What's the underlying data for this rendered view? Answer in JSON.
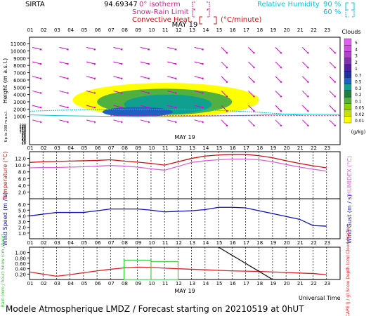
{
  "header": {
    "site": "SIRTA",
    "number": "94.69347",
    "date": "MAY 19",
    "legend_left": [
      {
        "label": "0° isotherm",
        "color": "#e0208c"
      },
      {
        "label": "Snow-Rain Limit",
        "color": "#e0208c"
      },
      {
        "label": "Convective Heat.",
        "color": "#d01010"
      }
    ],
    "convective_unit": "(°C/minute)",
    "humidity_label": "Relative Humidity",
    "humidity_levels": [
      "90 %",
      "60 %"
    ],
    "humidity_color": "#00c8d8"
  },
  "footer": {
    "universal_time": "Universal Time",
    "model_line": "Modele Atmospherique LMDZ / Forecast starting on 20210519 at 0hUT"
  },
  "colors": {
    "temperature": "#d01010",
    "humidex": "#e060e0",
    "wind": "#1010c0",
    "rain": "#20d020",
    "snow": "#1060c0",
    "cape": "#e02020",
    "cloud_fraction": "#101010",
    "wind_arrow": "#e000e0"
  },
  "chart_data": [
    {
      "type": "heatmap",
      "panel": "clouds",
      "date": "MAY 19",
      "x_hours": [
        "01",
        "02",
        "03",
        "04",
        "05",
        "06",
        "07",
        "08",
        "09",
        "10",
        "11",
        "12",
        "13",
        "14",
        "15",
        "16",
        "17",
        "18",
        "19",
        "20",
        "21",
        "22",
        "23"
      ],
      "ylabel": "Height (m a.s.l.)",
      "ylabel_low": "Up to 200 m a.s.l.",
      "yticks_upper": [
        "1000",
        "2000",
        "3000",
        "4000",
        "5000",
        "6000",
        "7000",
        "8000",
        "9000",
        "10000",
        "11000"
      ],
      "yticks_lower": [
        "10",
        "20",
        "30",
        "40",
        "50",
        "60",
        "70",
        "80",
        "90",
        "100",
        "120",
        "140",
        "160",
        "180",
        "200"
      ],
      "legend_title": "Clouds",
      "legend_unit": "(g/kg)",
      "legend_levels": [
        "0.01",
        "0.02",
        "0.05",
        "0.1",
        "0.2",
        "0.3",
        "0.5",
        "0.7",
        "1",
        "2",
        "3",
        "4",
        "5"
      ],
      "legend_colors": [
        "#ffff00",
        "#c8e000",
        "#90d000",
        "#50b040",
        "#208040",
        "#10a090",
        "#2060c0",
        "#2030a0",
        "#5020a0",
        "#8030b0",
        "#b040d0",
        "#d050e0",
        "#e060f0"
      ],
      "cloud_layers": [
        {
          "level": "0.01",
          "h_start": 3.2,
          "h_end": 17.0,
          "z_bottom": 900,
          "z_top": 5600
        },
        {
          "level": "0.1",
          "h_start": 5.0,
          "h_end": 15.0,
          "z_bottom": 1200,
          "z_top": 4800
        },
        {
          "level": "0.3",
          "h_start": 7.0,
          "h_end": 13.5,
          "z_bottom": 1300,
          "z_top": 4000
        }
      ],
      "arrows": "wind direction arrows at each hour and height"
    },
    {
      "type": "line",
      "panel": "temperature",
      "x": [
        "01",
        "02",
        "03",
        "04",
        "05",
        "06",
        "07",
        "08",
        "09",
        "10",
        "11",
        "12",
        "13",
        "14",
        "15",
        "16",
        "17",
        "18",
        "19",
        "20",
        "21",
        "22",
        "23"
      ],
      "ylabel": "Temperature (°C)",
      "ylabel_right": "HUMIDEX (°C)",
      "yticks": [
        "2.0",
        "4.0",
        "6.0",
        "8.0",
        "10.0",
        "12.0"
      ],
      "ylim": [
        0,
        14
      ],
      "series": [
        {
          "name": "Temperature",
          "values": [
            10.8,
            11.0,
            11.1,
            11.2,
            11.3,
            11.4,
            11.6,
            11.2,
            10.9,
            10.5,
            10.0,
            11.0,
            12.0,
            12.7,
            13.0,
            13.2,
            13.2,
            12.8,
            12.2,
            11.3,
            10.5,
            9.8,
            9.2
          ]
        },
        {
          "name": "HUMIDEX",
          "values": [
            9.2,
            9.3,
            9.3,
            9.4,
            9.5,
            9.7,
            9.9,
            9.7,
            9.4,
            8.9,
            8.5,
            9.6,
            10.8,
            11.3,
            11.6,
            11.8,
            11.8,
            11.6,
            11.0,
            10.2,
            9.4,
            8.8,
            8.2
          ]
        }
      ]
    },
    {
      "type": "line",
      "panel": "wind",
      "x": [
        "01",
        "02",
        "03",
        "04",
        "05",
        "06",
        "07",
        "08",
        "09",
        "10",
        "11",
        "12",
        "13",
        "14",
        "15",
        "16",
        "17",
        "18",
        "19",
        "20",
        "21",
        "22",
        "23"
      ],
      "ylabel": "Wind Speed (m / s)",
      "ylabel_right": "Wind Gust (m / s)",
      "yticks": [
        "1.0",
        "2.0",
        "3.0",
        "4.0",
        "5.0",
        "6.0"
      ],
      "ylim": [
        0,
        7
      ],
      "series": [
        {
          "name": "Wind Speed",
          "values": [
            4.0,
            4.3,
            4.6,
            4.6,
            4.6,
            4.9,
            5.2,
            5.2,
            5.2,
            5.0,
            4.7,
            4.8,
            4.9,
            5.1,
            5.5,
            5.5,
            5.4,
            4.9,
            4.4,
            3.9,
            3.4,
            2.3,
            2.2
          ]
        }
      ]
    },
    {
      "type": "line",
      "panel": "precipitation",
      "x": [
        "01",
        "02",
        "03",
        "04",
        "05",
        "06",
        "07",
        "08",
        "09",
        "10",
        "11",
        "12",
        "13",
        "14",
        "15",
        "16",
        "17",
        "18",
        "19",
        "20",
        "21",
        "22",
        "23"
      ],
      "ylabel": "Rain (mm / hour) Snow (cm / hour)",
      "ylabel_right": "CAPE (J / g) Snow Depth (cm) Cloud Fraction",
      "yticks": [
        "0.20",
        "0.40",
        "0.60",
        "0.80",
        "1.00"
      ],
      "ylim": [
        0,
        1.2
      ],
      "series": [
        {
          "name": "CAPE",
          "values": [
            0.28,
            0.2,
            0.12,
            0.18,
            0.25,
            0.32,
            0.38,
            0.43,
            0.46,
            0.45,
            0.42,
            0.4,
            0.38,
            0.36,
            0.34,
            0.32,
            0.31,
            0.3,
            0.28,
            0.26,
            0.24,
            0.22,
            0.18
          ]
        },
        {
          "name": "Cloud Fraction",
          "values": [
            null,
            null,
            null,
            null,
            null,
            null,
            null,
            null,
            null,
            null,
            null,
            null,
            null,
            null,
            1.2,
            0.9,
            0.6,
            0.3,
            0.0,
            0.0,
            0.0,
            0.0,
            0.0
          ]
        }
      ],
      "rain_bars": [
        {
          "h_start": 8,
          "h_end": 10,
          "value": 0.72
        },
        {
          "h_start": 10,
          "h_end": 12,
          "value": 0.67
        }
      ]
    }
  ]
}
